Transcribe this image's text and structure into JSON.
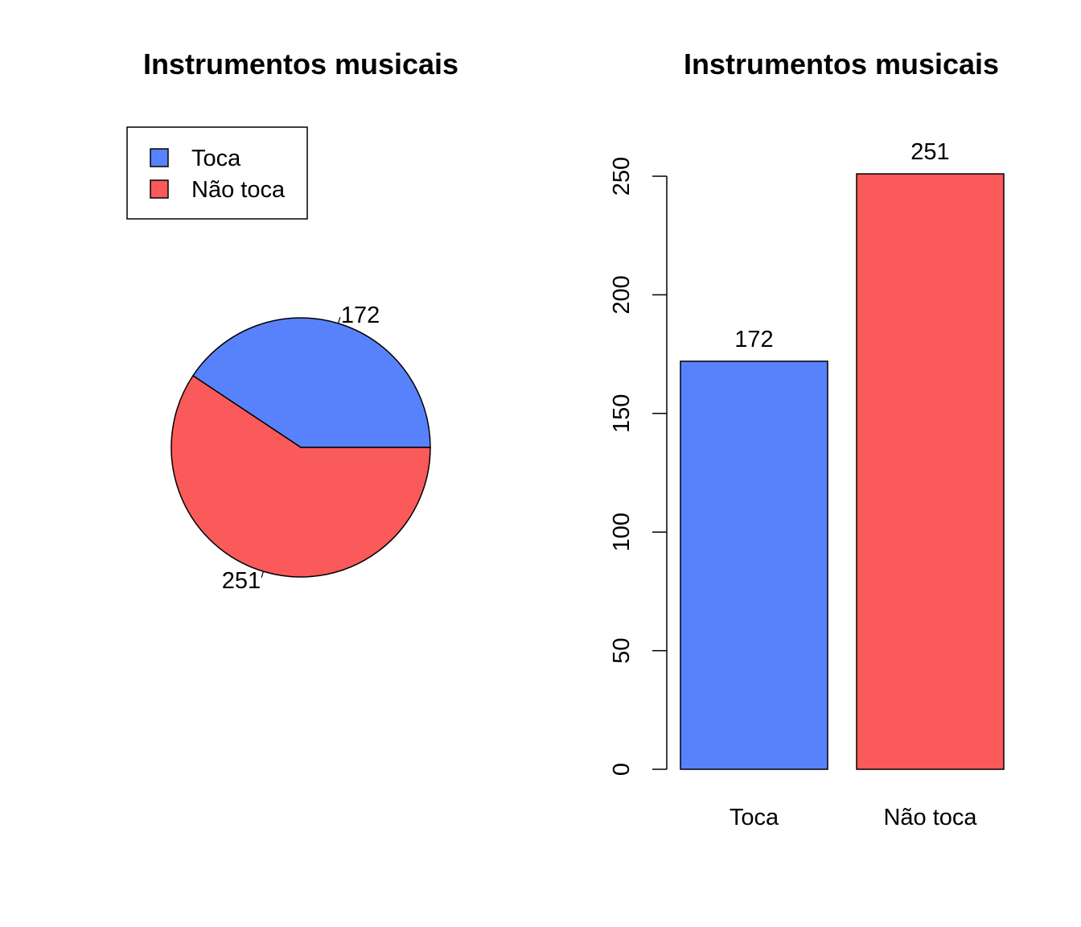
{
  "chart_data": [
    {
      "type": "pie",
      "title": "Instrumentos musicais",
      "categories": [
        "Toca",
        "Não toca"
      ],
      "values": [
        172,
        251
      ],
      "slice_labels": [
        "172",
        "251"
      ],
      "colors": [
        "#5882FC",
        "#FA5A5A"
      ],
      "legend": {
        "placement": "top-left",
        "entries": [
          "Toca",
          "Não toca"
        ]
      }
    },
    {
      "type": "bar",
      "title": "Instrumentos musicais",
      "categories": [
        "Toca",
        "Não toca"
      ],
      "values": [
        172,
        251
      ],
      "value_labels": [
        "172",
        "251"
      ],
      "colors": [
        "#5882FC",
        "#FA5A5A"
      ],
      "xlabel": "",
      "ylabel": "",
      "ylim": [
        0,
        250
      ],
      "yticks": [
        0,
        50,
        100,
        150,
        200,
        250
      ],
      "grid": false
    }
  ]
}
